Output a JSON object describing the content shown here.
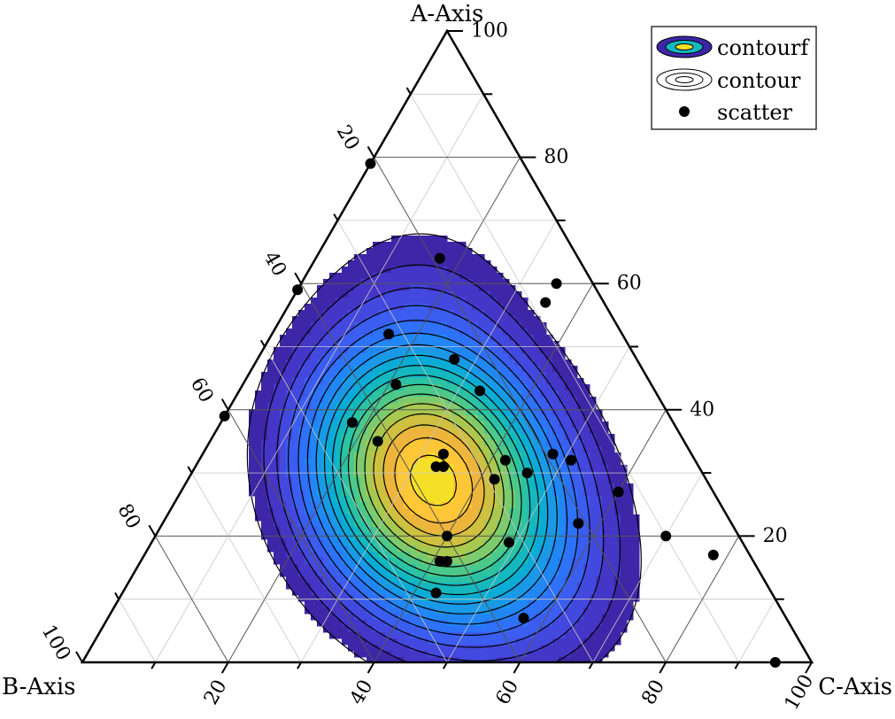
{
  "chart_data": {
    "type": "ternary-contour",
    "axes": {
      "a": {
        "label": "A-Axis",
        "range": [
          0,
          100
        ],
        "ticks": [
          20,
          40,
          60,
          80,
          100
        ]
      },
      "b": {
        "label": "B-Axis",
        "range": [
          0,
          100
        ],
        "ticks": [
          20,
          40,
          60,
          80,
          100
        ]
      },
      "c": {
        "label": "C-Axis",
        "range": [
          0,
          100
        ],
        "ticks": [
          20,
          40,
          60,
          80,
          100
        ]
      }
    },
    "grid": true,
    "legend": {
      "position": "top-right",
      "items": [
        {
          "label": "contourf",
          "kind": "filled-contour"
        },
        {
          "label": "contour",
          "kind": "line-contour"
        },
        {
          "label": "scatter",
          "kind": "marker"
        }
      ]
    },
    "colormap": [
      "#3e26a8",
      "#4436c6",
      "#4349de",
      "#3b5df0",
      "#2d72f8",
      "#2187f5",
      "#1a9ae6",
      "#0aacd6",
      "#14b8be",
      "#2cc2a4",
      "#4cc98a",
      "#7dcb6d",
      "#a9c84f",
      "#cfc03f",
      "#edb53c",
      "#fdc737",
      "#f5e027"
    ],
    "density_peaks": [
      {
        "a": 31,
        "b": 40,
        "c": 29,
        "weight": 1.0
      },
      {
        "a": 26,
        "b": 34,
        "c": 40,
        "weight": 0.85
      },
      {
        "a": 40,
        "b": 36,
        "c": 24,
        "weight": 0.55
      },
      {
        "a": 16,
        "b": 42,
        "c": 42,
        "weight": 0.45
      },
      {
        "a": 62,
        "b": 22,
        "c": 16,
        "weight": 0.22
      },
      {
        "a": 10,
        "b": 30,
        "c": 60,
        "weight": 0.3
      }
    ],
    "scatter": [
      {
        "a": 79,
        "b": 21,
        "c": 0
      },
      {
        "a": 64,
        "b": 19,
        "c": 17
      },
      {
        "a": 59,
        "b": 41,
        "c": 0
      },
      {
        "a": 60,
        "b": 5,
        "c": 35
      },
      {
        "a": 57,
        "b": 8,
        "c": 35
      },
      {
        "a": 52,
        "b": 32,
        "c": 16
      },
      {
        "a": 48,
        "b": 25,
        "c": 27
      },
      {
        "a": 43,
        "b": 24,
        "c": 33
      },
      {
        "a": 44,
        "b": 35,
        "c": 21
      },
      {
        "a": 39,
        "b": 61,
        "c": 0
      },
      {
        "a": 38,
        "b": 44,
        "c": 18
      },
      {
        "a": 35,
        "b": 42,
        "c": 23
      },
      {
        "a": 33,
        "b": 19,
        "c": 48
      },
      {
        "a": 32,
        "b": 17,
        "c": 51
      },
      {
        "a": 33,
        "b": 34,
        "c": 33
      },
      {
        "a": 32,
        "b": 26,
        "c": 42
      },
      {
        "a": 30,
        "b": 24,
        "c": 46
      },
      {
        "a": 31,
        "b": 35,
        "c": 34
      },
      {
        "a": 31,
        "b": 36,
        "c": 33
      },
      {
        "a": 29,
        "b": 29,
        "c": 42
      },
      {
        "a": 27,
        "b": 13,
        "c": 60
      },
      {
        "a": 22,
        "b": 21,
        "c": 57
      },
      {
        "a": 20,
        "b": 10,
        "c": 70
      },
      {
        "a": 19,
        "b": 32,
        "c": 49
      },
      {
        "a": 16,
        "b": 42,
        "c": 42
      },
      {
        "a": 16,
        "b": 43,
        "c": 41
      },
      {
        "a": 20,
        "b": 40,
        "c": 40
      },
      {
        "a": 7,
        "b": 36,
        "c": 57
      },
      {
        "a": 11,
        "b": 46,
        "c": 43
      },
      {
        "a": 17,
        "b": 5,
        "c": 78
      },
      {
        "a": 0,
        "b": 5,
        "c": 95
      }
    ]
  }
}
